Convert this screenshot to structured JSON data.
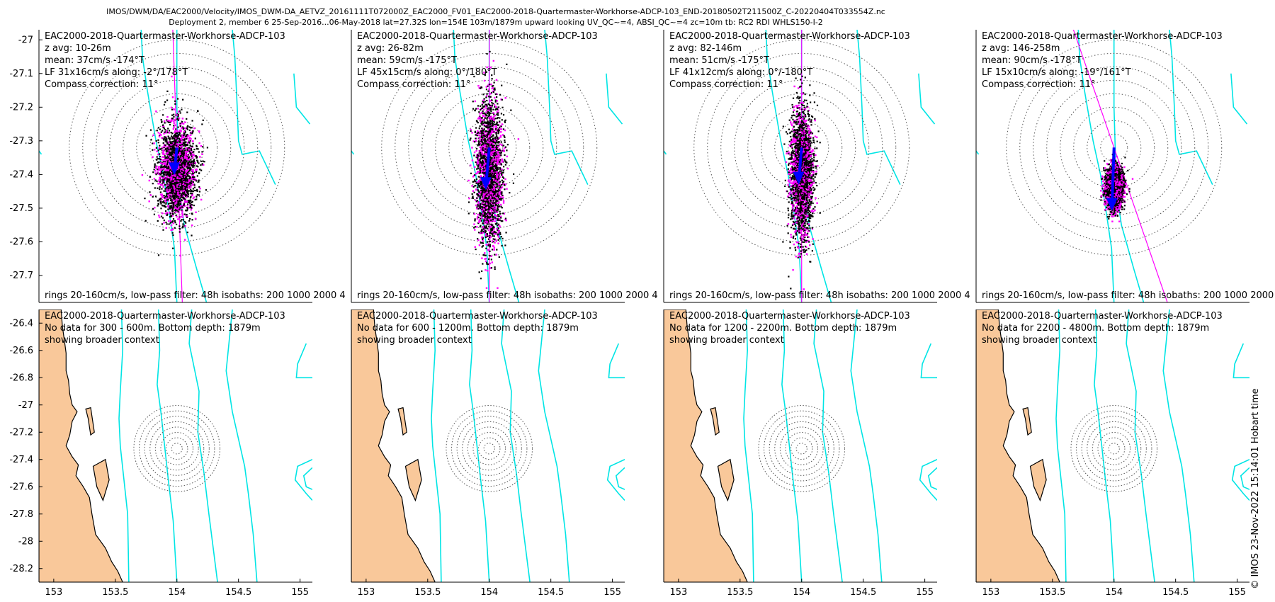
{
  "figure": {
    "title_line1": "IMOS/DWM/DA/EAC2000/Velocity/IMOS_DWM-DA_AETVZ_20161111T072000Z_EAC2000_FV01_EAC2000-2018-Quartermaster-Workhorse-ADCP-103_END-20180502T211500Z_C-20220404T033554Z.nc",
    "title_line2": "Deployment 2, member 6 25-Sep-2016...06-May-2018 lat=27.32S lon=154E 103m/1879m upward looking UV_QC~=4, ABSI_QC~=4 zc=10m tb: RC2 RDI WHLS150-I-2",
    "side_label": "© IMOS 23-Nov-2022 15:14:01 Hobart time",
    "colors": {
      "scatter_black": "#000000",
      "scatter_magenta": "#ff00ff",
      "mean_arrow": "#0000ff",
      "principal_axis": "#ff00ff",
      "isobath": "#00e5e5",
      "rings": "#555555",
      "land": "#f9c89a"
    }
  },
  "chart_data": [
    {
      "type": "scatter",
      "title": "",
      "info": [
        "EAC2000-2018-Quartermaster-Workhorse-ADCP-103",
        "z avg: 10-26m",
        "mean: 37cm/s -174°T",
        "LF 31x16cm/s along: -2°/178°T",
        "Compass correction: 11°"
      ],
      "footer": "rings 20-160cm/s, low-pass filter: 48h isobaths: 200 1000 2000 4",
      "ylim": [
        -27.78,
        -26.97
      ],
      "yticks": [
        "-27",
        "-27.1",
        "-27.2",
        "-27.3",
        "-27.4",
        "-27.5",
        "-27.6",
        "-27.7"
      ],
      "ytick_values": [
        -27,
        -27.1,
        -27.2,
        -27.3,
        -27.4,
        -27.5,
        -27.6,
        -27.7
      ],
      "cloud_center": [
        154.0,
        -27.39
      ],
      "cloud_spread": [
        0.075,
        0.07
      ],
      "mean_speed_cm_s": 37,
      "mean_dir_degT": -174,
      "lf_major_cm_s": 31,
      "lf_minor_cm_s": 16,
      "along_dir_degT": 178,
      "grid": false
    },
    {
      "type": "scatter",
      "title": "",
      "info": [
        "EAC2000-2018-Quartermaster-Workhorse-ADCP-103",
        "z avg: 26-82m",
        "mean: 59cm/s -175°T",
        "LF 45x15cm/s along: 0°/180°T",
        "Compass correction: 11°"
      ],
      "footer": "rings 20-160cm/s, low-pass filter: 48h isobaths: 200 1000 2000 4",
      "ylim": [
        -27.78,
        -26.97
      ],
      "yticks": [],
      "cloud_center": [
        154.0,
        -27.39
      ],
      "cloud_spread": [
        0.055,
        0.105
      ],
      "mean_speed_cm_s": 59,
      "mean_dir_degT": -175,
      "lf_major_cm_s": 45,
      "lf_minor_cm_s": 15,
      "along_dir_degT": 180,
      "grid": false
    },
    {
      "type": "scatter",
      "title": "",
      "info": [
        "EAC2000-2018-Quartermaster-Workhorse-ADCP-103",
        "z avg: 82-146m",
        "mean: 51cm/s -175°T",
        "LF 41x12cm/s along: 0°/-180°T",
        "Compass correction: 11°"
      ],
      "footer": "rings 20-160cm/s, low-pass filter: 48h isobaths: 200 1000 2000 4",
      "ylim": [
        -27.78,
        -26.97
      ],
      "yticks": [],
      "cloud_center": [
        154.0,
        -27.4
      ],
      "cloud_spread": [
        0.045,
        0.095
      ],
      "mean_speed_cm_s": 51,
      "mean_dir_degT": -175,
      "lf_major_cm_s": 41,
      "lf_minor_cm_s": 12,
      "along_dir_degT": -180,
      "grid": false
    },
    {
      "type": "scatter",
      "title": "",
      "info": [
        "EAC2000-2018-Quartermaster-Workhorse-ADCP-103",
        "z avg: 146-258m",
        "mean: 90cm/s -178°T",
        "LF 15x10cm/s along: -19°/161°T",
        "Compass correction: 11°"
      ],
      "footer": "rings 20-160cm/s, low-pass filter: 48h isobaths: 200 1000 2000 4",
      "ylim": [
        -27.78,
        -26.97
      ],
      "yticks": [],
      "cloud_center": [
        154.0,
        -27.44
      ],
      "cloud_spread": [
        0.035,
        0.03
      ],
      "mean_speed_cm_s": 90,
      "mean_dir_degT": -178,
      "lf_major_cm_s": 15,
      "lf_minor_cm_s": 10,
      "along_dir_degT": 161,
      "grid": false
    },
    {
      "type": "map",
      "info": [
        "EAC2000-2018-Quartermaster-Workhorse-ADCP-103",
        "No data for 300 - 600m. Bottom depth: 1879m",
        "showing broader context"
      ],
      "xlim": [
        152.88,
        155.1
      ],
      "ylim": [
        -28.3,
        -26.3
      ],
      "xticks": [
        "153",
        "153.5",
        "154",
        "154.5",
        "155"
      ],
      "xtick_values": [
        153,
        153.5,
        154,
        154.5,
        155
      ],
      "yticks": [
        "-26.4",
        "-26.6",
        "-26.8",
        "-27",
        "-27.2",
        "-27.4",
        "-27.6",
        "-27.8",
        "-28",
        "-28.2"
      ],
      "ytick_values": [
        -26.4,
        -26.6,
        -26.8,
        -27,
        -27.2,
        -27.4,
        -27.6,
        -27.8,
        -28,
        -28.2
      ]
    },
    {
      "type": "map",
      "info": [
        "EAC2000-2018-Quartermaster-Workhorse-ADCP-103",
        "No data for 600 - 1200m. Bottom depth: 1879m",
        "showing broader context"
      ],
      "xlim": [
        152.88,
        155.1
      ],
      "ylim": [
        -28.3,
        -26.3
      ],
      "xticks": [
        "153",
        "153.5",
        "154",
        "154.5",
        "155"
      ],
      "xtick_values": [
        153,
        153.5,
        154,
        154.5,
        155
      ],
      "yticks": []
    },
    {
      "type": "map",
      "info": [
        "EAC2000-2018-Quartermaster-Workhorse-ADCP-103",
        "No data for 1200 - 2200m. Bottom depth: 1879m",
        "showing broader context"
      ],
      "xlim": [
        152.88,
        155.1
      ],
      "ylim": [
        -28.3,
        -26.3
      ],
      "xticks": [
        "153",
        "153.5",
        "154",
        "154.5",
        "155"
      ],
      "xtick_values": [
        153,
        153.5,
        154,
        154.5,
        155
      ],
      "yticks": []
    },
    {
      "type": "map",
      "info": [
        "EAC2000-2018-Quartermaster-Workhorse-ADCP-103",
        "No data for 2200 - 4800m. Bottom depth: 1879m",
        "showing broader context"
      ],
      "xlim": [
        152.88,
        155.1
      ],
      "ylim": [
        -28.3,
        -26.3
      ],
      "xticks": [
        "153",
        "153.5",
        "154",
        "154.5",
        "155"
      ],
      "xtick_values": [
        153,
        153.5,
        154,
        154.5,
        155
      ],
      "yticks": []
    }
  ]
}
